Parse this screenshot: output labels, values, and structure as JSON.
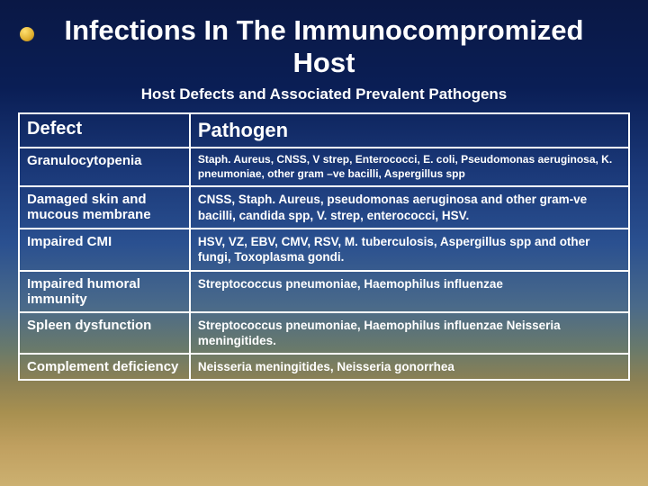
{
  "title": "Infections In The Immunocompromized Host",
  "subtitle": "Host  Defects and Associated Prevalent Pathogens",
  "columns": {
    "defect": "Defect",
    "pathogen": "Pathogen"
  },
  "rows": [
    {
      "defect": "Granulocytopenia",
      "pathogen": "Staph. Aureus, CNSS, V strep, Enterococci, E. coli, Pseudomonas aeruginosa, K. pneumoniae, other gram –ve bacilli, Aspergillus spp",
      "small": true
    },
    {
      "defect": "Damaged skin and mucous membrane",
      "pathogen": "CNSS, Staph. Aureus, pseudomonas aeruginosa and other gram-ve bacilli, candida spp, V. strep, enterococci, HSV.",
      "small": false
    },
    {
      "defect": "Impaired CMI",
      "pathogen": "HSV, VZ, EBV, CMV, RSV, M. tuberculosis, Aspergillus spp and other fungi, Toxoplasma gondi.",
      "small": false
    },
    {
      "defect": "Impaired humoral immunity",
      "pathogen": "Streptococcus pneumoniae, Haemophilus influenzae",
      "small": false
    },
    {
      "defect": "Spleen dysfunction",
      "pathogen": "Streptococcus pneumoniae, Haemophilus influenzae Neisseria meningitides.",
      "small": false
    },
    {
      "defect": "Complement deficiency",
      "pathogen": "Neisseria meningitides, Neisseria gonorrhea",
      "small": false
    }
  ],
  "colors": {
    "text": "#ffffff",
    "border": "#ffffff",
    "bullet": "#e0b030"
  }
}
